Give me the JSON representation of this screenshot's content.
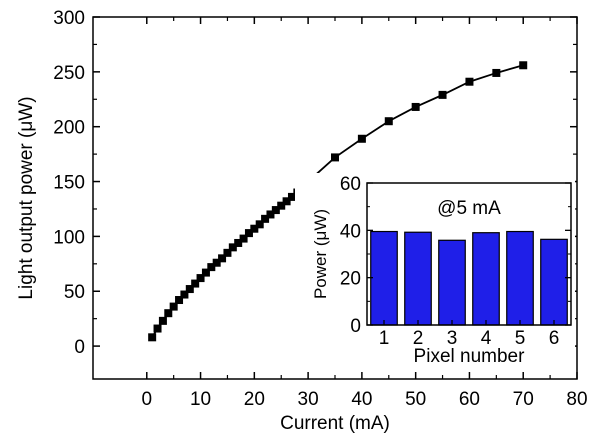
{
  "chart_data": [
    {
      "type": "line",
      "xlabel": "Current (mA)",
      "ylabel": "Light output power (μW)",
      "xlim": [
        -10,
        80
      ],
      "ylim": [
        -30,
        300
      ],
      "xticks": [
        0,
        10,
        20,
        30,
        40,
        50,
        60,
        70,
        80
      ],
      "yticks": [
        0,
        50,
        100,
        150,
        200,
        250,
        300
      ],
      "marker": "square",
      "colors": {
        "line": "#000000",
        "marker": "#000000"
      },
      "series": [
        {
          "x": [
            1,
            2,
            3,
            4,
            5,
            6,
            7,
            8,
            9,
            10,
            11,
            12,
            13,
            14,
            15,
            16,
            17,
            18,
            19,
            20,
            21,
            22,
            23,
            24,
            25,
            26,
            27,
            28,
            29,
            30,
            35,
            40,
            45,
            50,
            55,
            60,
            65,
            70
          ],
          "y": [
            8,
            16,
            23,
            30,
            36,
            42,
            47,
            52,
            57,
            62,
            67,
            72,
            76,
            80,
            85,
            90,
            94,
            98,
            103,
            107,
            111,
            116,
            120,
            124,
            128,
            132,
            136,
            140,
            145,
            150,
            172,
            189,
            205,
            218,
            229,
            241,
            249,
            256
          ]
        }
      ]
    },
    {
      "type": "bar",
      "annotation": "@5 mA",
      "xlabel": "Pixel number",
      "ylabel": "Power (μW)",
      "categories": [
        "1",
        "2",
        "3",
        "4",
        "5",
        "6"
      ],
      "values": [
        39.5,
        39.2,
        35.8,
        39.0,
        39.5,
        36.2
      ],
      "ylim": [
        0,
        60
      ],
      "yticks": [
        0,
        20,
        40,
        60
      ],
      "colors": {
        "bar": "#1f1fe8",
        "edge": "#000000"
      }
    }
  ]
}
